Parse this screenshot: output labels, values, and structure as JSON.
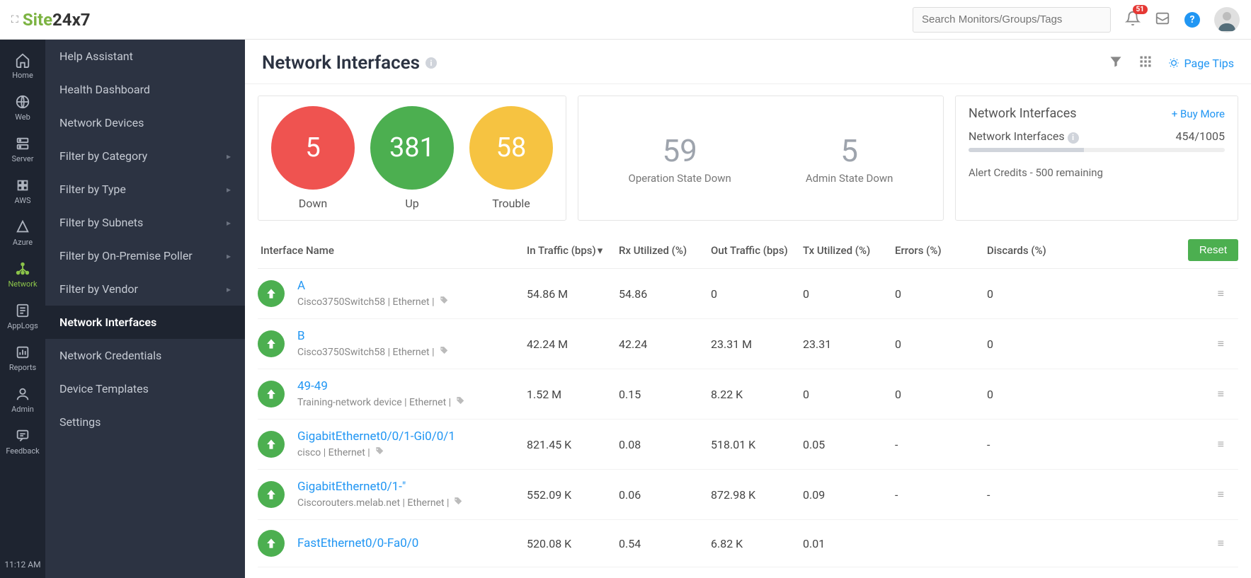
{
  "brand": {
    "site": "Site",
    "suffix": "24x7"
  },
  "search_placeholder": "Search Monitors/Groups/Tags",
  "notification_count": "51",
  "nav_rail": [
    {
      "key": "home",
      "label": "Home"
    },
    {
      "key": "web",
      "label": "Web"
    },
    {
      "key": "server",
      "label": "Server"
    },
    {
      "key": "aws",
      "label": "AWS"
    },
    {
      "key": "azure",
      "label": "Azure"
    },
    {
      "key": "network",
      "label": "Network"
    },
    {
      "key": "applogs",
      "label": "AppLogs"
    },
    {
      "key": "reports",
      "label": "Reports"
    },
    {
      "key": "admin",
      "label": "Admin"
    },
    {
      "key": "feedback",
      "label": "Feedback"
    }
  ],
  "nav_active": "network",
  "clock": "11:12 AM",
  "subnav": [
    {
      "label": "Help Assistant",
      "expandable": false
    },
    {
      "label": "Health Dashboard",
      "expandable": false
    },
    {
      "label": "Network Devices",
      "expandable": false
    },
    {
      "label": "Filter by Category",
      "expandable": true
    },
    {
      "label": "Filter by Type",
      "expandable": true
    },
    {
      "label": "Filter by Subnets",
      "expandable": true
    },
    {
      "label": "Filter by On-Premise Poller",
      "expandable": true
    },
    {
      "label": "Filter by Vendor",
      "expandable": true
    },
    {
      "label": "Network Interfaces",
      "expandable": false,
      "active": true
    },
    {
      "label": "Network Credentials",
      "expandable": false
    },
    {
      "label": "Device Templates",
      "expandable": false
    },
    {
      "label": "Settings",
      "expandable": false
    }
  ],
  "page_title": "Network Interfaces",
  "page_tips": "Page Tips",
  "status_circles": [
    {
      "value": "5",
      "label": "Down",
      "color": "#ef5350"
    },
    {
      "value": "381",
      "label": "Up",
      "color": "#4caf50"
    },
    {
      "value": "58",
      "label": "Trouble",
      "color": "#f6c341"
    }
  ],
  "state_stats": [
    {
      "value": "59",
      "label": "Operation State Down"
    },
    {
      "value": "5",
      "label": "Admin State Down"
    }
  ],
  "license": {
    "title": "Network Interfaces",
    "buy_more": "+ Buy More",
    "row_label": "Network Interfaces",
    "usage": "454/1005",
    "progress_pct": 45,
    "alert_credits": "Alert Credits - 500 remaining"
  },
  "columns": [
    "Interface Name",
    "In Traffic (bps)",
    "Rx Utilized (%)",
    "Out Traffic (bps)",
    "Tx Utilized (%)",
    "Errors (%)",
    "Discards (%)"
  ],
  "sort_column_index": 1,
  "reset_label": "Reset",
  "rows": [
    {
      "name": "A",
      "sub": "Cisco3750Switch58 | Ethernet  |",
      "cells": [
        "54.86 M",
        "54.86",
        "0",
        "0",
        "0",
        "0"
      ]
    },
    {
      "name": "B",
      "sub": "Cisco3750Switch58 | Ethernet  |",
      "cells": [
        "42.24 M",
        "42.24",
        "23.31 M",
        "23.31",
        "0",
        "0"
      ]
    },
    {
      "name": "49-49",
      "sub": "Training-network device | Ethernet  |",
      "cells": [
        "1.52 M",
        "0.15",
        "8.22 K",
        "0",
        "0",
        "0"
      ]
    },
    {
      "name": "GigabitEthernet0/0/1-Gi0/0/1",
      "sub": "cisco | Ethernet  |",
      "cells": [
        "821.45 K",
        "0.08",
        "518.01 K",
        "0.05",
        "-",
        "-"
      ]
    },
    {
      "name": "GigabitEthernet0/1-\"",
      "sub": "Ciscorouters.melab.net | Ethernet  |",
      "cells": [
        "552.09 K",
        "0.06",
        "872.98 K",
        "0.09",
        "-",
        "-"
      ]
    },
    {
      "name": "FastEthernet0/0-Fa0/0",
      "sub": "",
      "cells": [
        "520.08 K",
        "0.54",
        "6.82 K",
        "0.01",
        "",
        ""
      ]
    }
  ]
}
